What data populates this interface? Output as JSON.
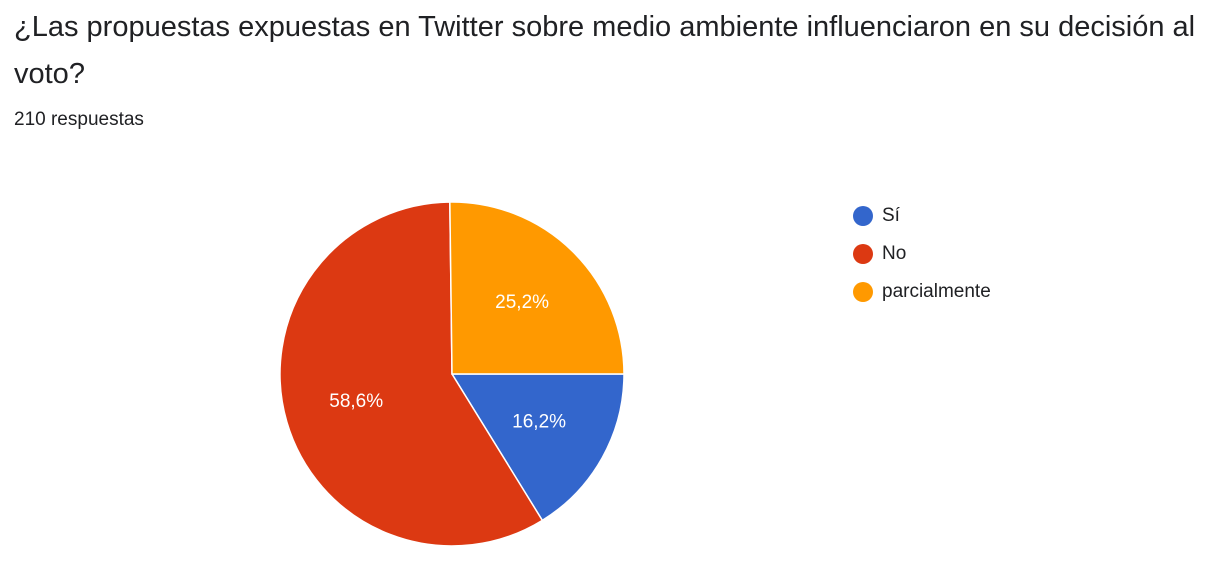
{
  "header": {
    "title": "¿Las propuestas expuestas en Twitter sobre medio ambiente influenciaron en su decisión al voto?",
    "response_count": "210 respuestas"
  },
  "chart_data": {
    "type": "pie",
    "categories": [
      "Sí",
      "No",
      "parcialmente"
    ],
    "values": [
      16.2,
      58.6,
      25.2
    ],
    "labels": [
      "16,2%",
      "58,6%",
      "25,2%"
    ],
    "colors": [
      "#3366cc",
      "#dc3912",
      "#ff9900"
    ],
    "start_angle_deg": 0,
    "direction": "clockwise",
    "legend_position": "right",
    "legend": [
      "Sí",
      "No",
      "parcialmente"
    ]
  }
}
